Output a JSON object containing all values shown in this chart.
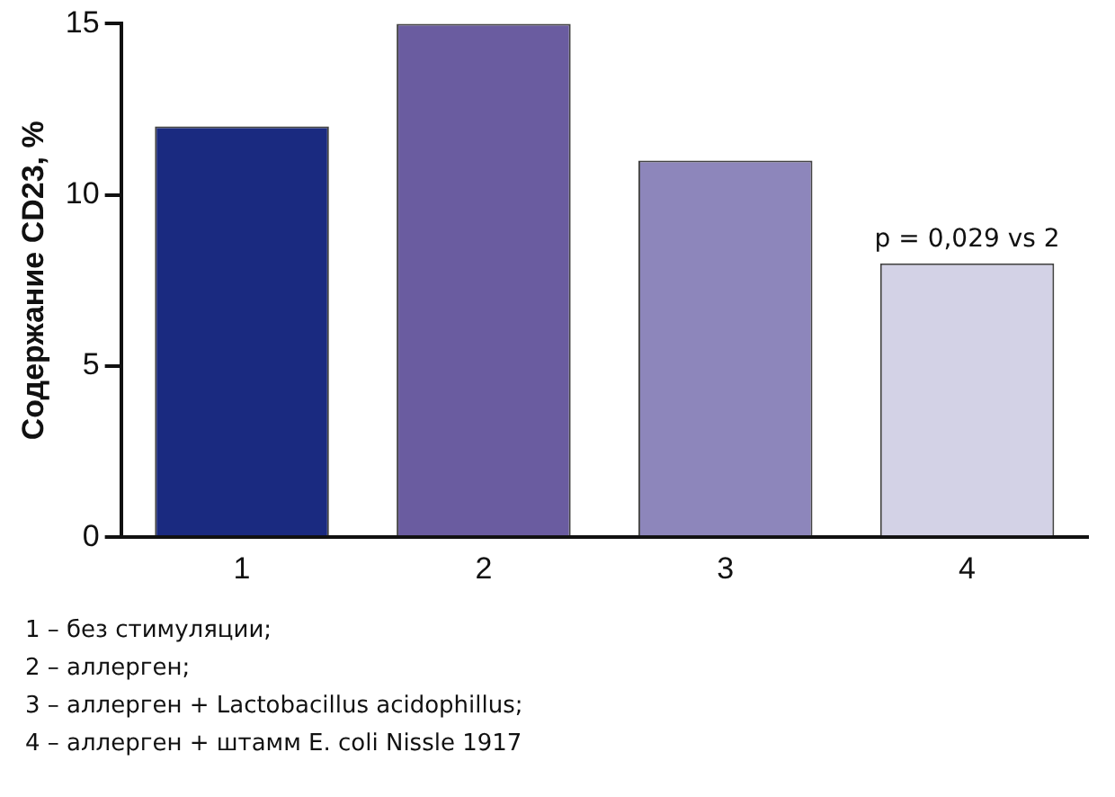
{
  "chart_data": {
    "type": "bar",
    "ylabel": "Содержание CD23, %",
    "categories": [
      "1",
      "2",
      "3",
      "4"
    ],
    "values": [
      12,
      15,
      11,
      8
    ],
    "colors": [
      "#1a2a80",
      "#6a5ca0",
      "#8d86bb",
      "#d3d2e6"
    ],
    "ylim": [
      0,
      15
    ],
    "yticks": [
      0,
      5,
      10,
      15
    ],
    "grid": false,
    "legend": false,
    "annotations": [
      {
        "text": "p = 0,029 vs 2",
        "x": "4",
        "y": 8
      },
      "1 – без стимуляции;",
      "2 – аллерген;",
      "3 – аллерген + Lactobacillus acidophillus;",
      "4 – аллерген + штамм E. coli Nissle 1917"
    ]
  }
}
